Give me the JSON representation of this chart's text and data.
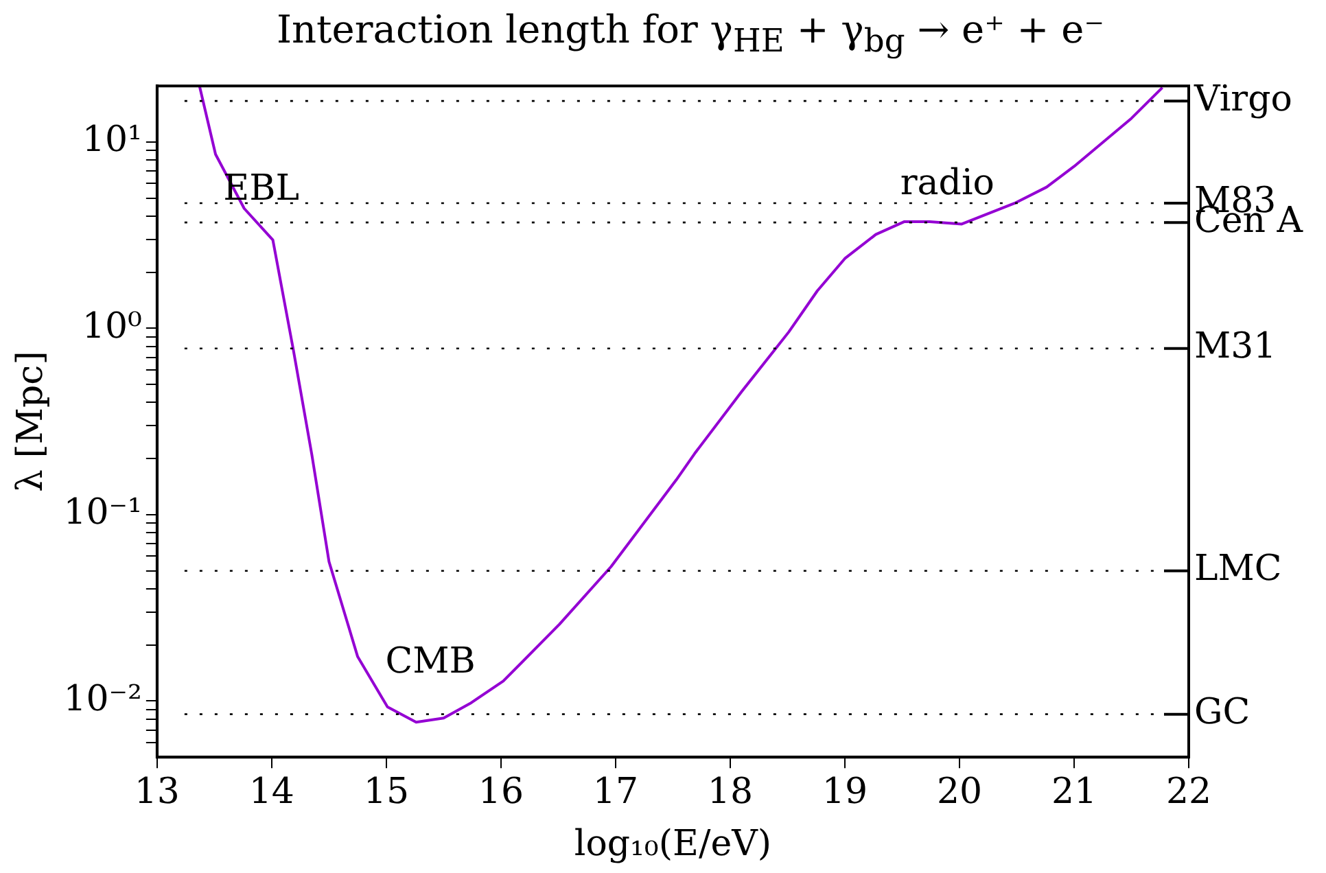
{
  "chart_data": {
    "type": "line",
    "title": "Interaction length for γ$_{HE}$ + γ$_{bg}$ → e⁺ + e⁻",
    "xlabel": "log₁₀(E/eV)",
    "ylabel": "λ [Mpc]",
    "series": [
      {
        "color": "#9400d3",
        "x": [
          13.37,
          13.51,
          13.76,
          14.01,
          14.19,
          14.35,
          14.5,
          14.75,
          15.01,
          15.26,
          15.5,
          15.73,
          16.02,
          16.51,
          16.96,
          17.53,
          17.69,
          18.1,
          18.51,
          18.76,
          19.0,
          19.27,
          19.52,
          19.74,
          20.02,
          20.48,
          20.76,
          21.0,
          21.5,
          21.77
        ],
        "values": [
          20,
          8.6,
          4.4,
          2.98,
          0.76,
          0.21,
          0.056,
          0.0173,
          0.0093,
          0.0077,
          0.0081,
          0.0097,
          0.0128,
          0.0258,
          0.0526,
          0.154,
          0.213,
          0.458,
          0.955,
          1.59,
          2.37,
          3.19,
          3.74,
          3.74,
          3.63,
          4.69,
          5.73,
          7.4,
          13.4,
          19.6
        ]
      }
    ],
    "xlim": [
      13,
      22
    ],
    "xticks": [
      13,
      14,
      15,
      16,
      17,
      18,
      19,
      20,
      21,
      22
    ],
    "ylim": [
      0.005,
      20
    ],
    "log": "y",
    "yticks": [
      {
        "value": 0.006,
        "label": null
      },
      {
        "value": 0.007,
        "label": null
      },
      {
        "value": 0.008,
        "label": null
      },
      {
        "value": 0.009,
        "label": null
      },
      {
        "value": 0.01,
        "label": "10⁻²"
      },
      {
        "value": 0.02,
        "label": null
      },
      {
        "value": 0.03,
        "label": null
      },
      {
        "value": 0.04,
        "label": null
      },
      {
        "value": 0.05,
        "label": null
      },
      {
        "value": 0.06,
        "label": null
      },
      {
        "value": 0.07,
        "label": null
      },
      {
        "value": 0.08,
        "label": null
      },
      {
        "value": 0.09,
        "label": null
      },
      {
        "value": 0.1,
        "label": "10⁻¹"
      },
      {
        "value": 0.2,
        "label": null
      },
      {
        "value": 0.3,
        "label": null
      },
      {
        "value": 0.4,
        "label": null
      },
      {
        "value": 0.5,
        "label": null
      },
      {
        "value": 0.6,
        "label": null
      },
      {
        "value": 0.7,
        "label": null
      },
      {
        "value": 0.8,
        "label": null
      },
      {
        "value": 0.9,
        "label": null
      },
      {
        "value": 1,
        "label": "10⁰"
      },
      {
        "value": 2,
        "label": null
      },
      {
        "value": 3,
        "label": null
      },
      {
        "value": 4,
        "label": null
      },
      {
        "value": 5,
        "label": null
      },
      {
        "value": 6,
        "label": null
      },
      {
        "value": 7,
        "label": null
      },
      {
        "value": 8,
        "label": null
      },
      {
        "value": 9,
        "label": null
      },
      {
        "value": 10,
        "label": "10¹"
      }
    ],
    "grid": false,
    "marker": "none",
    "ref_lines": [
      {
        "axis": "y",
        "value": 16.6,
        "label": "Virgo",
        "line_style": "dotted",
        "color": "#000000"
      },
      {
        "axis": "y",
        "value": 4.7,
        "label": "M83",
        "line_style": "dotted",
        "color": "#000000"
      },
      {
        "axis": "y",
        "value": 3.7,
        "label": "Cen A",
        "line_style": "dotted",
        "color": "#000000"
      },
      {
        "axis": "y",
        "value": 0.78,
        "label": "M31",
        "line_style": "dotted",
        "color": "#000000"
      },
      {
        "axis": "y",
        "value": 0.05,
        "label": "LMC",
        "line_style": "dotted",
        "color": "#000000"
      },
      {
        "axis": "y",
        "value": 0.0085,
        "label": "GC",
        "line_style": "dotted",
        "color": "#000000"
      }
    ],
    "annotations": [
      "EBL",
      "radio",
      "CMB"
    ]
  }
}
